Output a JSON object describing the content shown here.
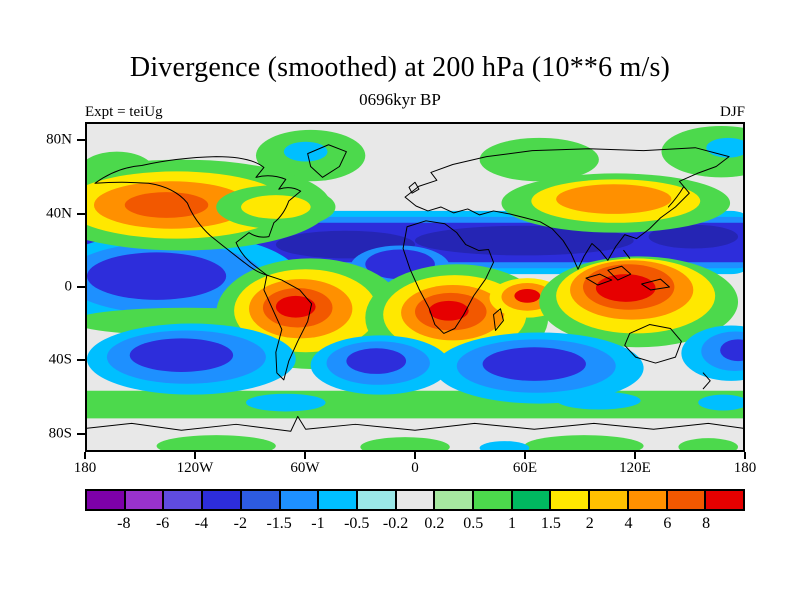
{
  "chart_data": {
    "type": "heatmap",
    "title": "Divergence (smoothed) at 200 hPa (10**6 m/s)",
    "subtitle": "0696kyr BP",
    "experiment_label": "Expt = teiUg",
    "season_label": "DJF",
    "map": {
      "projection": "global cylindrical equidistant with coastlines",
      "lon_range": [
        -180,
        180
      ],
      "lat_range": [
        -90,
        90
      ],
      "grid": false
    },
    "x_axis": {
      "ticks": [
        {
          "label": "180",
          "lon": -180
        },
        {
          "label": "120W",
          "lon": -120
        },
        {
          "label": "60W",
          "lon": -60
        },
        {
          "label": "0",
          "lon": 0
        },
        {
          "label": "60E",
          "lon": 60
        },
        {
          "label": "120E",
          "lon": 120
        },
        {
          "label": "180",
          "lon": 180
        }
      ]
    },
    "y_axis": {
      "ticks": [
        {
          "label": "80N",
          "lat": 80
        },
        {
          "label": "40N",
          "lat": 40
        },
        {
          "label": "0",
          "lat": 0
        },
        {
          "label": "40S",
          "lat": -40
        },
        {
          "label": "80S",
          "lat": -80
        }
      ]
    },
    "colorbar": {
      "labels": [
        "-8",
        "-6",
        "-4",
        "-2",
        "-1.5",
        "-1",
        "-0.5",
        "-0.2",
        "0.2",
        "0.5",
        "1",
        "1.5",
        "2",
        "4",
        "6",
        "8"
      ],
      "levels": [
        -8,
        -6,
        -4,
        -2,
        -1.5,
        -1,
        -0.5,
        -0.2,
        0.2,
        0.5,
        1,
        1.5,
        2,
        4,
        6,
        8
      ],
      "colors": [
        "#7D00A8",
        "#9932CC",
        "#5F4BE0",
        "#2D2DDB",
        "#2D5BE0",
        "#1E90FF",
        "#00BFFF",
        "#9BE8E8",
        "#E8E8E8",
        "#A6E8A0",
        "#4CD94C",
        "#00B860",
        "#FFE800",
        "#FFC000",
        "#FF9000",
        "#F25800",
        "#E60000"
      ],
      "position": "bottom horizontal"
    },
    "pattern_summary": "Filled contours: deep blue convergence band spanning the globe near 10N-35N and blue cells near 30S-50S in each ocean basin; strong red/orange divergence maxima over tropical South America, central Africa, the tropical Indian Ocean and the Maritime Continent; orange cells over the North Pacific and East Asia near 40N; green bands near 55S and scattered green patches at high northern latitudes; near-zero (gray) elsewhere."
  }
}
